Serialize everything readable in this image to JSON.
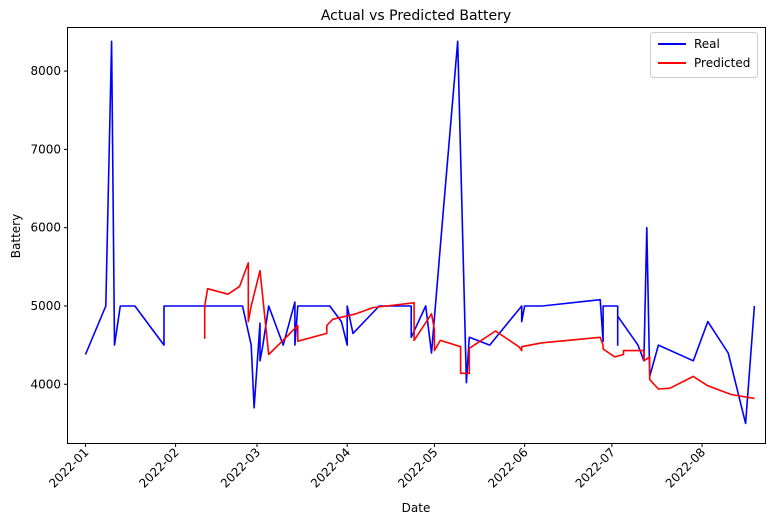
{
  "chart_data": {
    "type": "line",
    "title": "Actual vs Predicted Battery",
    "xlabel": "Date",
    "ylabel": "Battery",
    "x_is_date": true,
    "xlim": [
      "2021-12-26",
      "2022-08-23"
    ],
    "ylim": [
      3250,
      8550
    ],
    "yticks": [
      4000,
      5000,
      6000,
      7000,
      8000
    ],
    "xticks": [
      "2022-01",
      "2022-02",
      "2022-03",
      "2022-04",
      "2022-05",
      "2022-06",
      "2022-07",
      "2022-08"
    ],
    "xtick_dates": [
      "2022-01-01",
      "2022-02-01",
      "2022-03-01",
      "2022-04-01",
      "2022-05-01",
      "2022-06-01",
      "2022-07-01",
      "2022-08-01"
    ],
    "grid": false,
    "legend": {
      "placement": "top-right"
    },
    "series": [
      {
        "name": "Real",
        "color": "#0000ff",
        "x": [
          "2022-01-01",
          "2022-01-08",
          "2022-01-10",
          "2022-01-11",
          "2022-01-13",
          "2022-01-18",
          "2022-01-28",
          "2022-01-28",
          "2022-02-01",
          "2022-02-10",
          "2022-02-24",
          "2022-02-27",
          "2022-02-28",
          "2022-03-02",
          "2022-03-02",
          "2022-03-03",
          "2022-03-05",
          "2022-03-10",
          "2022-03-14",
          "2022-03-14",
          "2022-03-15",
          "2022-03-16",
          "2022-03-26",
          "2022-03-30",
          "2022-04-01",
          "2022-04-01",
          "2022-04-03",
          "2022-04-12",
          "2022-04-18",
          "2022-04-23",
          "2022-04-23",
          "2022-04-28",
          "2022-04-30",
          "2022-05-04",
          "2022-05-09",
          "2022-05-12",
          "2022-05-13",
          "2022-05-20",
          "2022-05-31",
          "2022-05-31",
          "2022-06-01",
          "2022-06-07",
          "2022-06-27",
          "2022-06-28",
          "2022-06-28",
          "2022-07-03",
          "2022-07-03",
          "2022-07-03",
          "2022-07-10",
          "2022-07-12",
          "2022-07-13",
          "2022-07-14",
          "2022-07-17",
          "2022-07-29",
          "2022-08-03",
          "2022-08-10",
          "2022-08-16",
          "2022-08-19"
        ],
        "y": [
          4380,
          5000,
          8380,
          4500,
          5000,
          5000,
          4500,
          5000,
          5000,
          5000,
          5000,
          4500,
          3700,
          4780,
          4300,
          4500,
          5000,
          4500,
          5050,
          4500,
          5000,
          5000,
          5000,
          4800,
          4500,
          5000,
          4650,
          5000,
          5000,
          5000,
          4600,
          5000,
          4400,
          6200,
          8380,
          4020,
          4600,
          4500,
          5000,
          4800,
          5000,
          5000,
          5080,
          4550,
          5000,
          5000,
          4500,
          4870,
          4500,
          4300,
          6000,
          4100,
          4500,
          4300,
          4800,
          4400,
          3500,
          5000
        ]
      },
      {
        "name": "Predicted",
        "color": "#ff0000",
        "x": [
          "2022-02-11",
          "2022-02-11",
          "2022-02-12",
          "2022-02-19",
          "2022-02-23",
          "2022-02-26",
          "2022-02-26",
          "2022-02-27",
          "2022-03-02",
          "2022-03-05",
          "2022-03-11",
          "2022-03-15",
          "2022-03-15",
          "2022-03-25",
          "2022-03-25",
          "2022-03-27",
          "2022-04-04",
          "2022-04-10",
          "2022-04-24",
          "2022-04-24",
          "2022-04-30",
          "2022-05-01",
          "2022-05-01",
          "2022-05-03",
          "2022-05-10",
          "2022-05-10",
          "2022-05-13",
          "2022-05-13",
          "2022-05-22",
          "2022-05-30",
          "2022-05-31",
          "2022-05-31",
          "2022-06-07",
          "2022-06-27",
          "2022-06-28",
          "2022-06-28",
          "2022-07-02",
          "2022-07-05",
          "2022-07-05",
          "2022-07-12",
          "2022-07-12",
          "2022-07-14",
          "2022-07-14",
          "2022-07-17",
          "2022-07-21",
          "2022-07-29",
          "2022-08-03",
          "2022-08-11",
          "2022-08-19"
        ],
        "y": [
          4580,
          5000,
          5220,
          5150,
          5250,
          5550,
          4800,
          5000,
          5450,
          4380,
          4600,
          4750,
          4550,
          4650,
          4750,
          4830,
          4900,
          4980,
          5040,
          4560,
          4900,
          4700,
          4430,
          4560,
          4480,
          4140,
          4140,
          4460,
          4680,
          4480,
          4430,
          4480,
          4530,
          4600,
          4500,
          4450,
          4350,
          4380,
          4430,
          4430,
          4300,
          4350,
          4060,
          3940,
          3950,
          4100,
          3980,
          3870,
          3820
        ]
      }
    ]
  }
}
